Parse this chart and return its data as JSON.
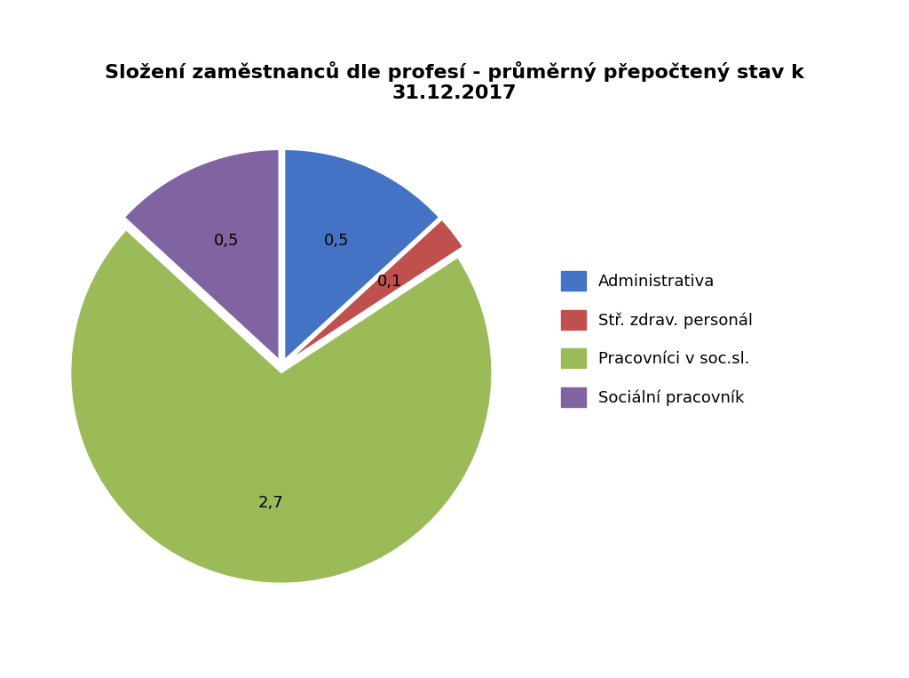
{
  "title": "Složení zaměstnanců dle profesí - průměrný přepočtený stav k\n31.12.2017",
  "labels": [
    "Administrativa",
    "Stř. zdrav. personál",
    "Pracovníci v soc.sl.",
    "Sociální pracovník"
  ],
  "values": [
    0.5,
    0.1,
    2.7,
    0.5
  ],
  "label_values": [
    "0,5",
    "0,1",
    "2,7",
    "0,5"
  ],
  "colors": [
    "#4472C4",
    "#C0504D",
    "#9BBB59",
    "#8064A2"
  ],
  "explode": [
    0.03,
    0.03,
    0.03,
    0.03
  ],
  "title_fontsize": 16,
  "label_fontsize": 13,
  "legend_fontsize": 13,
  "background_color": "#FFFFFF",
  "startangle": 90
}
